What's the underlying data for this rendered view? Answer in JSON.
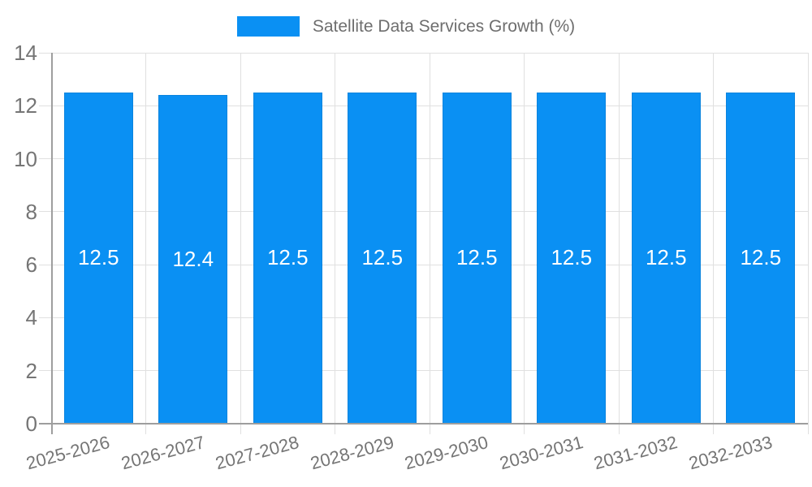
{
  "chart_data": {
    "type": "bar",
    "title": "",
    "legend": "Satellite Data Services Growth (%)",
    "legend_position": "top-center",
    "categories": [
      "2025-2026",
      "2026-2027",
      "2027-2028",
      "2028-2029",
      "2029-2030",
      "2030-2031",
      "2031-2032",
      "2032-2033"
    ],
    "values": [
      12.5,
      12.4,
      12.5,
      12.5,
      12.5,
      12.5,
      12.5,
      12.5
    ],
    "value_labels": [
      "12.5",
      "12.4",
      "12.5",
      "12.5",
      "12.5",
      "12.5",
      "12.5",
      "12.5"
    ],
    "xlabel": "",
    "ylabel": "",
    "ylim": [
      0,
      14
    ],
    "yticks": [
      0,
      2,
      4,
      6,
      8,
      10,
      12,
      14
    ],
    "grid": true,
    "colors": {
      "bar": "#0a90f3",
      "bar_border": "#0b84de",
      "gridline": "#e0e0e0",
      "axis_line": "#9e9e9e",
      "tick_text": "#757575",
      "legend_text": "#6e6e6e",
      "value_text": "#ffffff"
    }
  }
}
